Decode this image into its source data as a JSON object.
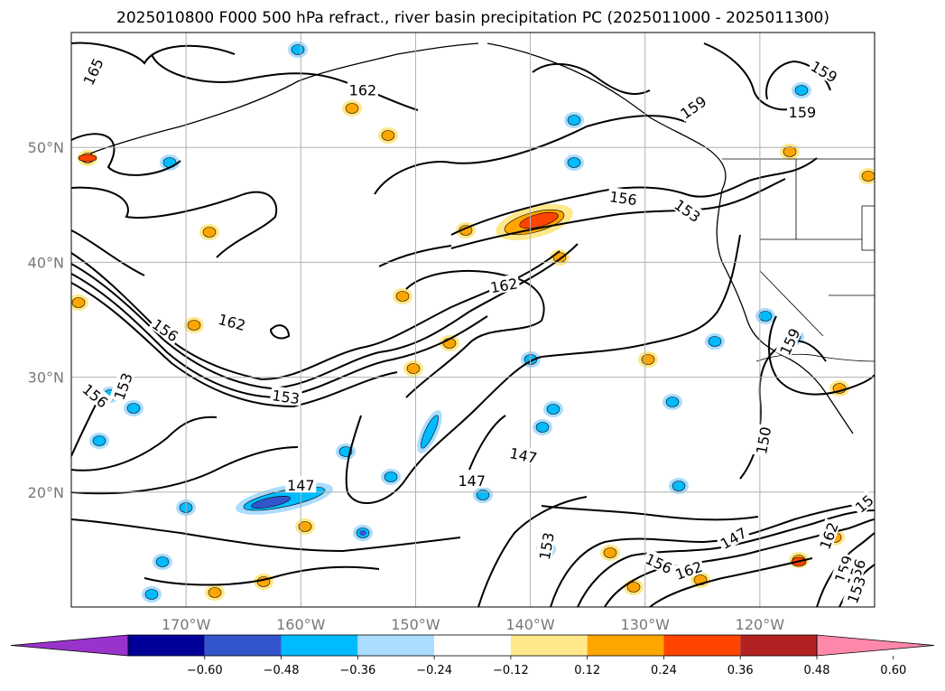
{
  "title": "2025010800 F000 500 hPa refract., river basin precipitation PC (2025011000 - 2025011300)",
  "map": {
    "lon_range": [
      -180,
      -110
    ],
    "lat_range": [
      10,
      60
    ],
    "lat_ticks": [
      {
        "value": 20,
        "label": "20°N"
      },
      {
        "value": 30,
        "label": "30°N"
      },
      {
        "value": 40,
        "label": "40°N"
      },
      {
        "value": 50,
        "label": "50°N"
      }
    ],
    "lon_ticks": [
      {
        "value": -170,
        "label": "170°W"
      },
      {
        "value": -160,
        "label": "160°W"
      },
      {
        "value": -150,
        "label": "150°W"
      },
      {
        "value": -140,
        "label": "140°W"
      },
      {
        "value": -130,
        "label": "130°W"
      },
      {
        "value": -120,
        "label": "120°W"
      }
    ],
    "gridlines": true,
    "contour_color": "#000000"
  },
  "colorbar": {
    "extend": "both",
    "colors": [
      "#9933cc",
      "#000099",
      "#3355cc",
      "#00bbff",
      "#aaddff",
      "#ffffff",
      "#ffe88a",
      "#ffa500",
      "#ff4400",
      "#b22222",
      "#ff88aa"
    ],
    "tick_labels": [
      "−0.60",
      "−0.48",
      "−0.36",
      "−0.24",
      "−0.12",
      "0.12",
      "0.24",
      "0.36",
      "0.48",
      "0.60"
    ]
  },
  "contour_labels": [
    {
      "text": "165",
      "lon": -178.1,
      "lat": 56.6,
      "rot": -65
    },
    {
      "text": "162",
      "lon": -154.6,
      "lat": 55.0,
      "rot": 0
    },
    {
      "text": "159",
      "lon": -125.8,
      "lat": 53.5,
      "rot": -35
    },
    {
      "text": "159",
      "lon": -114.4,
      "lat": 56.6,
      "rot": 30
    },
    {
      "text": "159",
      "lon": -116.3,
      "lat": 53.1,
      "rot": 0
    },
    {
      "text": "156",
      "lon": -131.9,
      "lat": 45.6,
      "rot": 8
    },
    {
      "text": "153",
      "lon": -126.3,
      "lat": 44.5,
      "rot": 35
    },
    {
      "text": "162",
      "lon": -142.3,
      "lat": 38.0,
      "rot": -10
    },
    {
      "text": "162",
      "lon": -166.0,
      "lat": 34.8,
      "rot": 15
    },
    {
      "text": "156",
      "lon": -171.8,
      "lat": 34.1,
      "rot": 35
    },
    {
      "text": "153",
      "lon": -175.5,
      "lat": 29.2,
      "rot": -70
    },
    {
      "text": "156",
      "lon": -177.9,
      "lat": 28.4,
      "rot": 40
    },
    {
      "text": "153",
      "lon": -161.3,
      "lat": 28.3,
      "rot": 8
    },
    {
      "text": "159",
      "lon": -117.4,
      "lat": 33.1,
      "rot": -65
    },
    {
      "text": "147",
      "lon": -140.6,
      "lat": 23.2,
      "rot": 12
    },
    {
      "text": "150",
      "lon": -119.7,
      "lat": 24.5,
      "rot": -80
    },
    {
      "text": "147",
      "lon": -145.1,
      "lat": 21.0,
      "rot": 0
    },
    {
      "text": "147",
      "lon": -160.0,
      "lat": 20.6,
      "rot": 0
    },
    {
      "text": "153",
      "lon": -138.6,
      "lat": 15.3,
      "rot": -80
    },
    {
      "text": "156",
      "lon": -128.8,
      "lat": 13.8,
      "rot": 25
    },
    {
      "text": "147",
      "lon": -122.3,
      "lat": 16.0,
      "rot": -30
    },
    {
      "text": "162",
      "lon": -126.2,
      "lat": 13.2,
      "rot": -20
    },
    {
      "text": "162",
      "lon": -114.0,
      "lat": 16.2,
      "rot": -70
    },
    {
      "text": "159",
      "lon": -112.7,
      "lat": 13.3,
      "rot": -70
    },
    {
      "text": "156",
      "lon": -111.6,
      "lat": 13.0,
      "rot": -70
    },
    {
      "text": "153",
      "lon": -111.6,
      "lat": 11.5,
      "rot": -70
    },
    {
      "text": "15",
      "lon": -110.9,
      "lat": 19.0,
      "rot": -40
    }
  ]
}
